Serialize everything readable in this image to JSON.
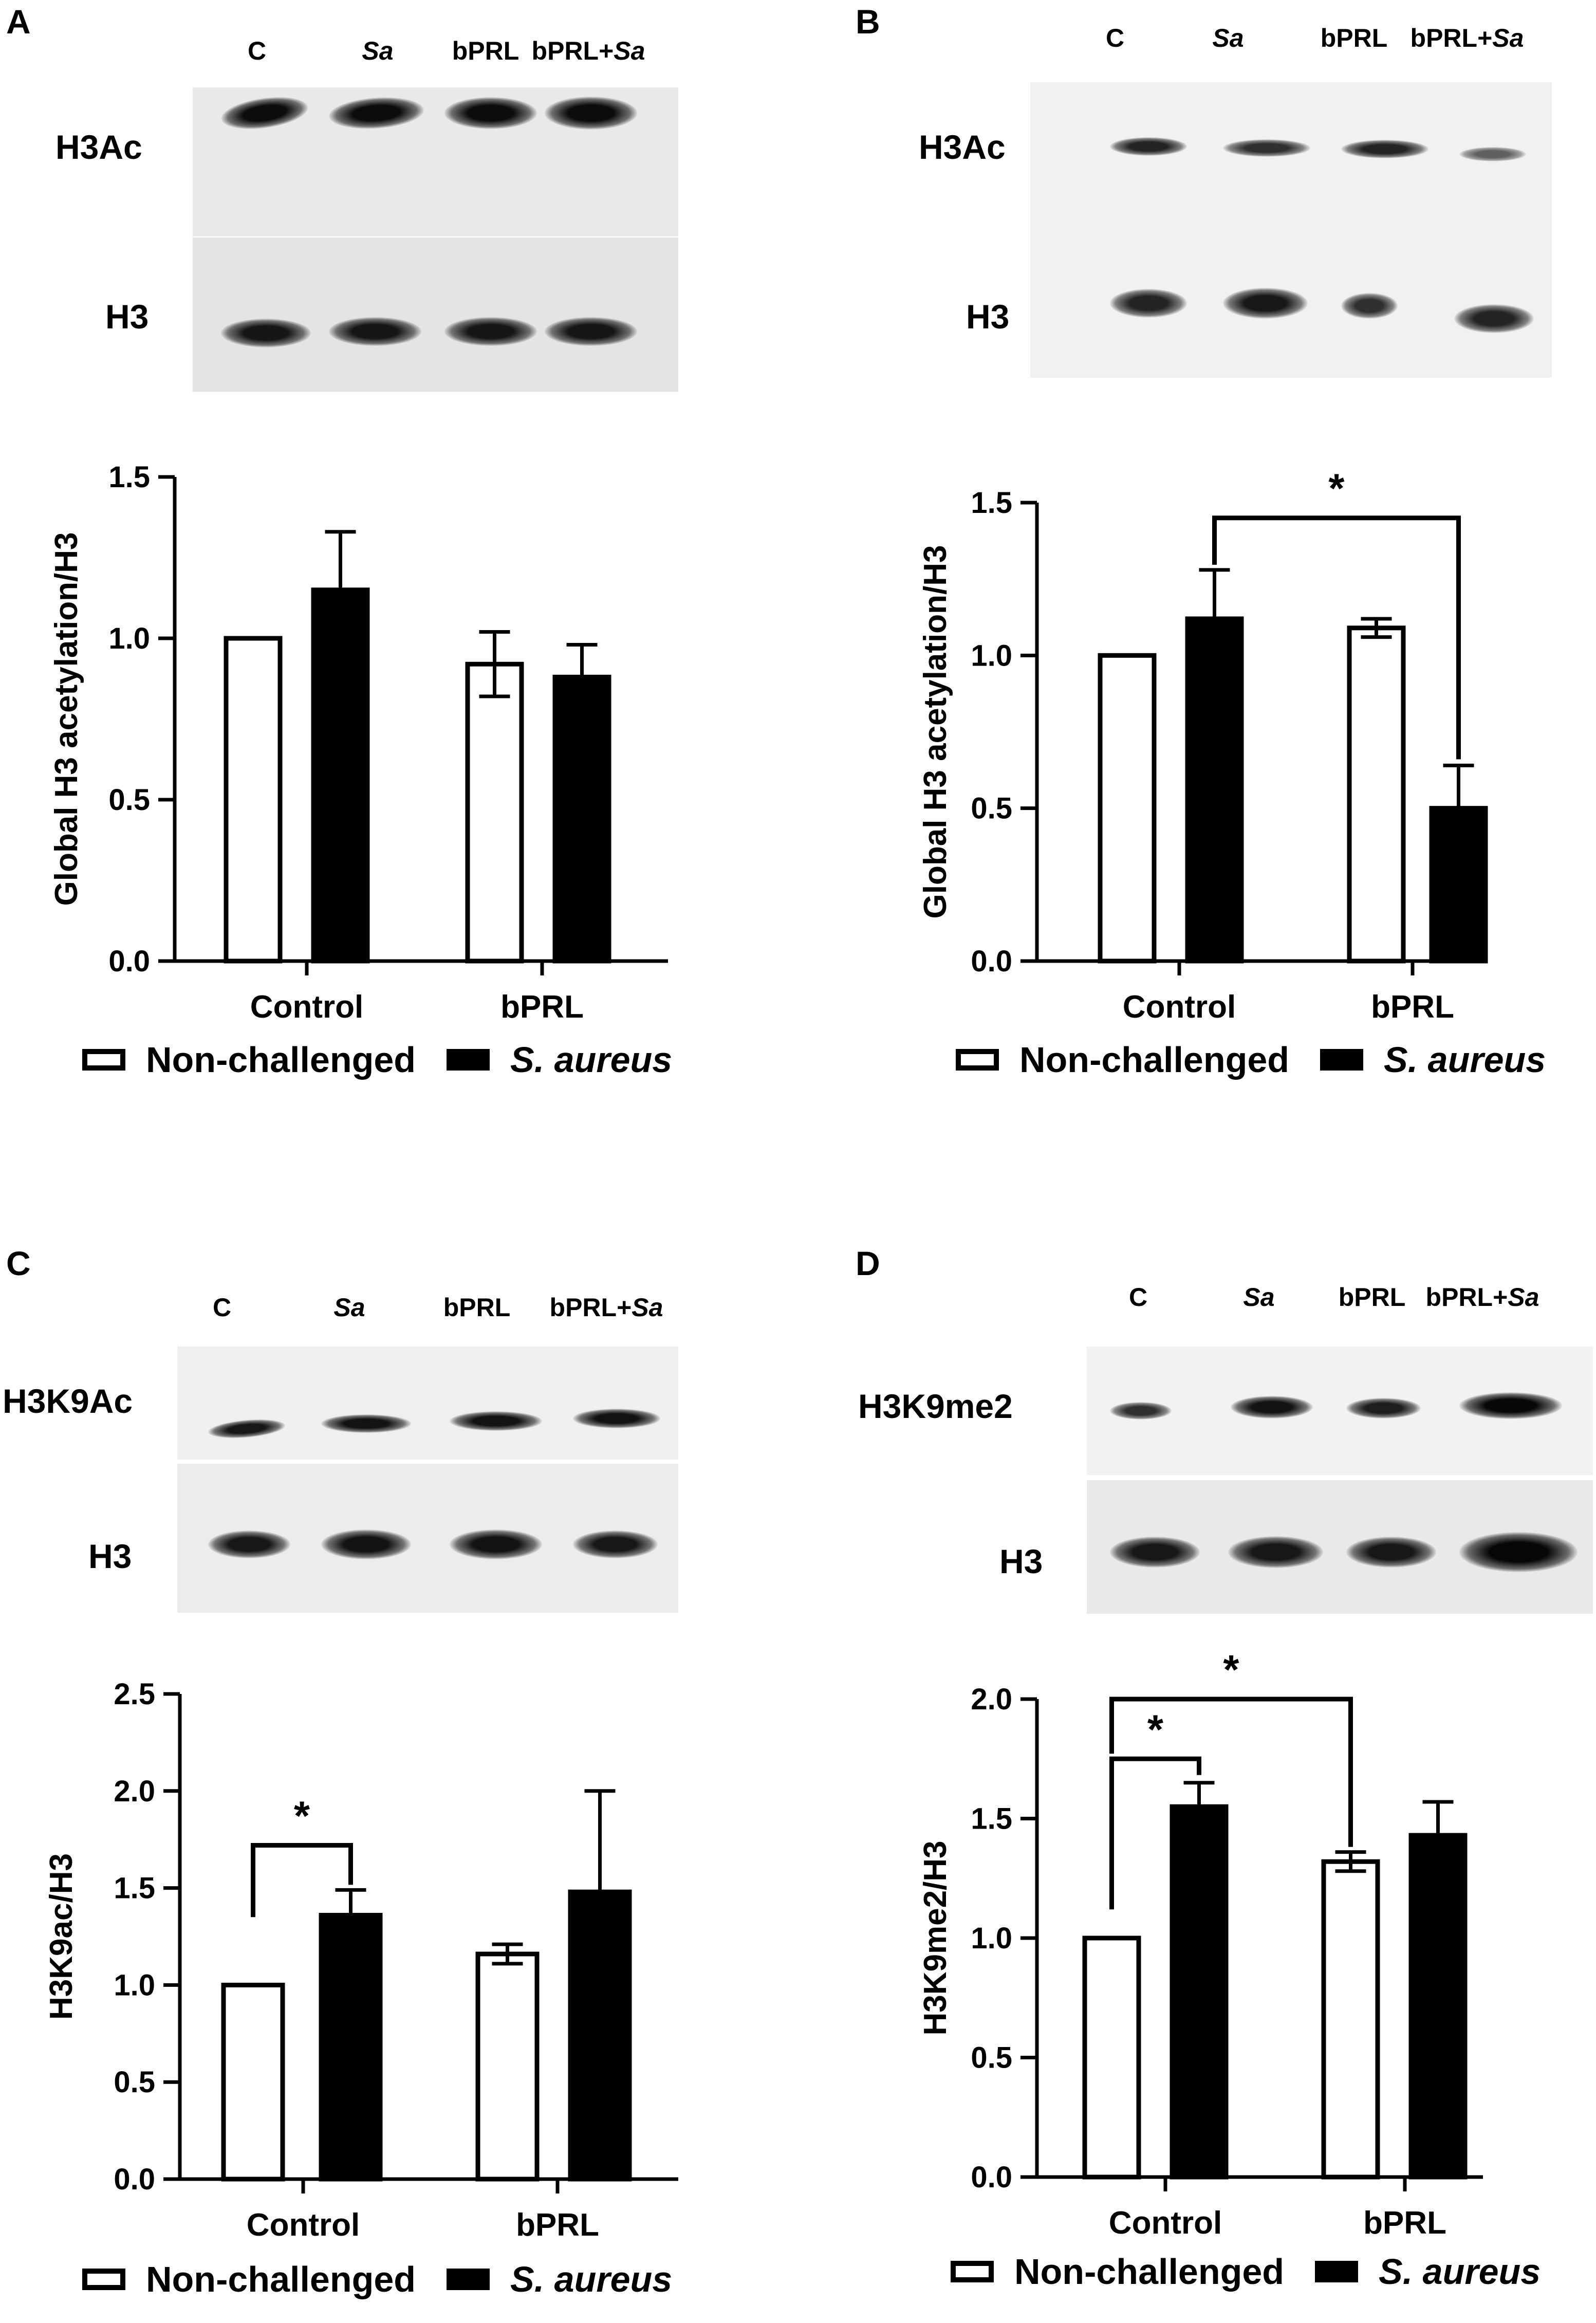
{
  "panels": [
    {
      "letter": "A",
      "lanes": [
        {
          "pre": "C",
          "it": ""
        },
        {
          "pre": "",
          "it": "Sa"
        },
        {
          "pre": "bPRL",
          "it": ""
        },
        {
          "pre": "bPRL+",
          "it": "Sa"
        }
      ],
      "blot_rows": [
        "H3Ac",
        "H3"
      ],
      "chart_data": {
        "type": "bar",
        "categories": [
          "Control",
          "bPRL"
        ],
        "series": [
          {
            "name": "Non-challenged",
            "values": [
              1.0,
              0.92
            ],
            "errors": [
              0,
              0.1
            ]
          },
          {
            "name": "S. aureus",
            "values": [
              1.15,
              0.88
            ],
            "errors": [
              0.18,
              0.1
            ]
          }
        ],
        "ylabel": "Global H3 acetylation/H3",
        "ylim": [
          0,
          1.5
        ],
        "yticks": [
          "0.0",
          "0.5",
          "1.0",
          "1.5"
        ],
        "significance": []
      }
    },
    {
      "letter": "B",
      "lanes": [
        {
          "pre": "C",
          "it": ""
        },
        {
          "pre": "",
          "it": "Sa"
        },
        {
          "pre": "bPRL",
          "it": ""
        },
        {
          "pre": "bPRL+",
          "it": "Sa"
        }
      ],
      "blot_rows": [
        "H3Ac",
        "H3"
      ],
      "chart_data": {
        "type": "bar",
        "categories": [
          "Control",
          "bPRL"
        ],
        "series": [
          {
            "name": "Non-challenged",
            "values": [
              1.0,
              1.09
            ],
            "errors": [
              0,
              0.03
            ]
          },
          {
            "name": "S. aureus",
            "values": [
              1.12,
              0.5
            ],
            "errors": [
              0.16,
              0.14
            ]
          }
        ],
        "ylabel": "Global H3 acetylation/H3",
        "ylim": [
          0,
          1.5
        ],
        "yticks": [
          "0.0",
          "0.5",
          "1.0",
          "1.5"
        ],
        "significance": [
          {
            "from": [
              0,
              1
            ],
            "to": [
              1,
              1
            ],
            "label": "*"
          }
        ]
      }
    },
    {
      "letter": "C",
      "lanes": [
        {
          "pre": "C",
          "it": ""
        },
        {
          "pre": "",
          "it": "Sa"
        },
        {
          "pre": "bPRL",
          "it": ""
        },
        {
          "pre": "bPRL+",
          "it": "Sa"
        }
      ],
      "blot_rows": [
        "H3K9Ac",
        "H3"
      ],
      "chart_data": {
        "type": "bar",
        "categories": [
          "Control",
          "bPRL"
        ],
        "series": [
          {
            "name": "Non-challenged",
            "values": [
              1.0,
              1.16
            ],
            "errors": [
              0,
              0.05
            ]
          },
          {
            "name": "S. aureus",
            "values": [
              1.36,
              1.48
            ],
            "errors": [
              0.13,
              0.52
            ]
          }
        ],
        "ylabel": "H3K9ac/H3",
        "ylim": [
          0,
          2.5
        ],
        "yticks": [
          "0.0",
          "0.5",
          "1.0",
          "1.5",
          "2.0",
          "2.5"
        ],
        "significance": [
          {
            "from": [
              0,
              0
            ],
            "to": [
              0,
              1
            ],
            "label": "*"
          }
        ]
      }
    },
    {
      "letter": "D",
      "lanes": [
        {
          "pre": "C",
          "it": ""
        },
        {
          "pre": "",
          "it": "Sa"
        },
        {
          "pre": "bPRL",
          "it": ""
        },
        {
          "pre": "bPRL+",
          "it": "Sa"
        }
      ],
      "blot_rows": [
        "H3K9me2",
        "H3"
      ],
      "chart_data": {
        "type": "bar",
        "categories": [
          "Control",
          "bPRL"
        ],
        "series": [
          {
            "name": "Non-challenged",
            "values": [
              1.0,
              1.32
            ],
            "errors": [
              0,
              0.04
            ]
          },
          {
            "name": "S. aureus",
            "values": [
              1.55,
              1.43
            ],
            "errors": [
              0.1,
              0.14
            ]
          }
        ],
        "ylabel": "H3K9me2/H3",
        "ylim": [
          0,
          2.0
        ],
        "yticks": [
          "0.0",
          "0.5",
          "1.0",
          "1.5",
          "2.0"
        ],
        "significance": [
          {
            "from": [
              0,
              0
            ],
            "to": [
              0,
              1
            ],
            "label": "*"
          },
          {
            "from": [
              0,
              0
            ],
            "to": [
              1,
              0
            ],
            "label": "*"
          }
        ]
      }
    }
  ],
  "legend": {
    "non_challenged": "Non-challenged",
    "s_aureus": "S. aureus"
  }
}
